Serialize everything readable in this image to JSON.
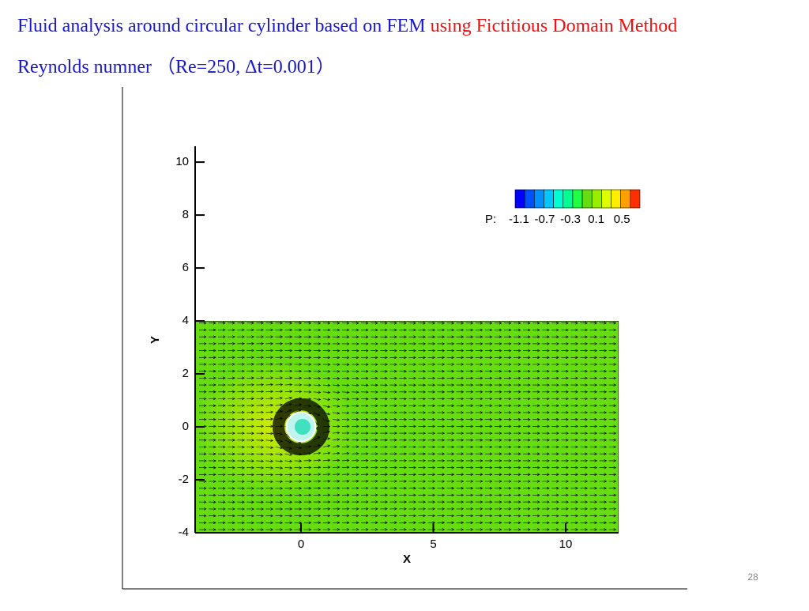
{
  "header": {
    "title": "Fluid analysis around circular cylinder based on FEM",
    "title_highlight": "using Fictitious Domain Method",
    "subtitle": "Reynolds numner （Re=250, Δt=0.001）"
  },
  "page_number": "28",
  "chart_data": {
    "type": "vector-field",
    "xlabel": "X",
    "ylabel": "Y",
    "xlim": [
      -4,
      12
    ],
    "ylim": [
      -4,
      10.6
    ],
    "xticks": [
      0,
      5,
      10
    ],
    "yticks": [
      -4,
      -2,
      0,
      2,
      4,
      6,
      8,
      10
    ],
    "domain": {
      "x": [
        -4,
        12
      ],
      "y": [
        -4,
        4
      ]
    },
    "cylinder": {
      "center": [
        0,
        0
      ],
      "radius": 0.5
    },
    "field_color": "#66dd11",
    "colorbar": {
      "name": "P:",
      "lim": [
        -1.16,
        0.78
      ],
      "ticks": [
        -1.1,
        -0.7,
        -0.3,
        0.1,
        0.5
      ],
      "colors": [
        "#0000ff",
        "#0050ff",
        "#0090ff",
        "#00c8ff",
        "#00ffd0",
        "#00ff90",
        "#20ff40",
        "#66dd11",
        "#99ee00",
        "#ddff00",
        "#ffee00",
        "#ffa000",
        "#ff3000"
      ]
    }
  }
}
